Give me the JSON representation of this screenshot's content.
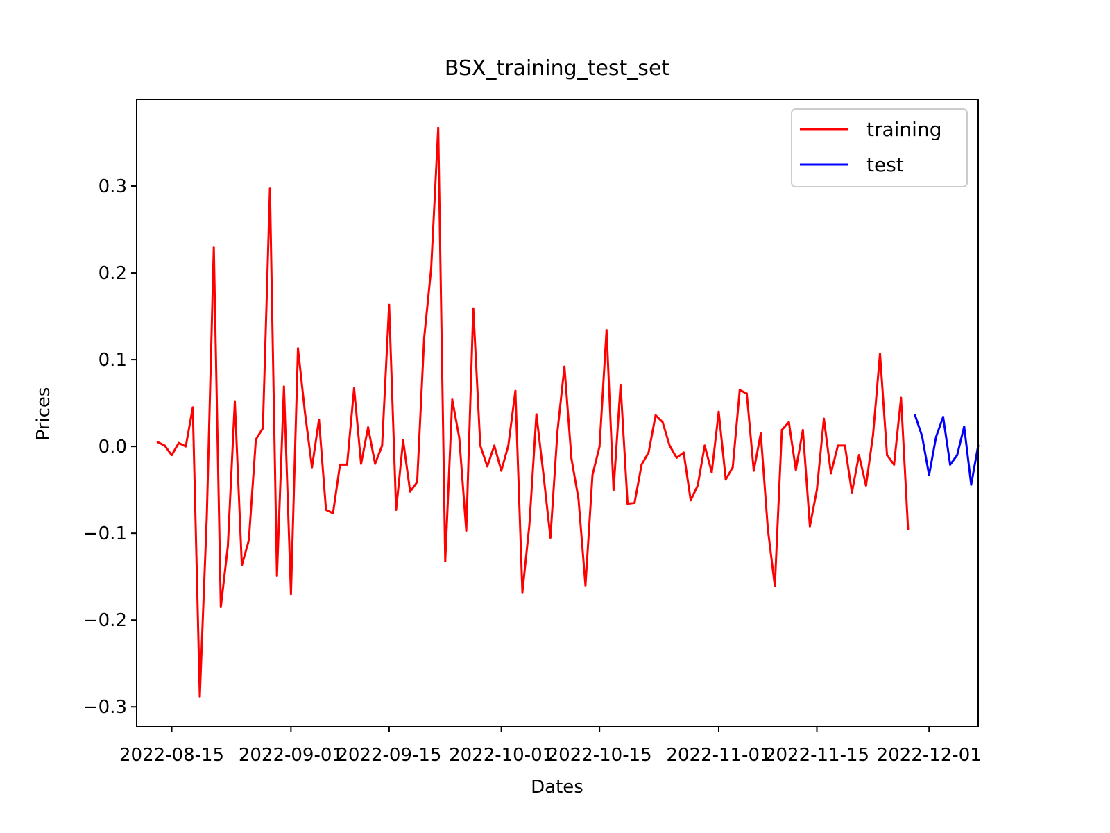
{
  "chart_data": {
    "type": "line",
    "title": "BSX_training_test_set",
    "xlabel": "Dates",
    "ylabel": "Prices",
    "xlim": [
      "2022-08-10",
      "2022-12-08"
    ],
    "ylim": [
      -0.323,
      0.4
    ],
    "x_ticks": [
      {
        "date": "2022-08-15",
        "label": "2022-08-15"
      },
      {
        "date": "2022-09-01",
        "label": "2022-09-01"
      },
      {
        "date": "2022-09-15",
        "label": "2022-09-15"
      },
      {
        "date": "2022-10-01",
        "label": "2022-10-01"
      },
      {
        "date": "2022-10-15",
        "label": "2022-10-15"
      },
      {
        "date": "2022-11-01",
        "label": "2022-11-01"
      },
      {
        "date": "2022-11-15",
        "label": "2022-11-15"
      },
      {
        "date": "2022-12-01",
        "label": "2022-12-01"
      }
    ],
    "y_ticks": [
      {
        "value": -0.3,
        "label": "−0.3"
      },
      {
        "value": -0.2,
        "label": "−0.2"
      },
      {
        "value": -0.1,
        "label": "−0.1"
      },
      {
        "value": 0.0,
        "label": "0.0"
      },
      {
        "value": 0.1,
        "label": "0.1"
      },
      {
        "value": 0.2,
        "label": "0.2"
      },
      {
        "value": 0.3,
        "label": "0.3"
      }
    ],
    "grid": false,
    "legend_position": "top-right",
    "series": [
      {
        "name": "training",
        "color": "#ff0000",
        "x": [
          "2022-08-13",
          "2022-08-14",
          "2022-08-15",
          "2022-08-16",
          "2022-08-17",
          "2022-08-18",
          "2022-08-19",
          "2022-08-20",
          "2022-08-21",
          "2022-08-22",
          "2022-08-23",
          "2022-08-24",
          "2022-08-25",
          "2022-08-26",
          "2022-08-27",
          "2022-08-28",
          "2022-08-29",
          "2022-08-30",
          "2022-08-31",
          "2022-09-01",
          "2022-09-02",
          "2022-09-03",
          "2022-09-04",
          "2022-09-05",
          "2022-09-06",
          "2022-09-07",
          "2022-09-08",
          "2022-09-09",
          "2022-09-10",
          "2022-09-11",
          "2022-09-12",
          "2022-09-13",
          "2022-09-14",
          "2022-09-15",
          "2022-09-16",
          "2022-09-17",
          "2022-09-18",
          "2022-09-19",
          "2022-09-20",
          "2022-09-21",
          "2022-09-22",
          "2022-09-23",
          "2022-09-24",
          "2022-09-25",
          "2022-09-26",
          "2022-09-27",
          "2022-09-28",
          "2022-09-29",
          "2022-09-30",
          "2022-10-01",
          "2022-10-02",
          "2022-10-03",
          "2022-10-04",
          "2022-10-05",
          "2022-10-06",
          "2022-10-07",
          "2022-10-08",
          "2022-10-09",
          "2022-10-10",
          "2022-10-11",
          "2022-10-12",
          "2022-10-13",
          "2022-10-14",
          "2022-10-15",
          "2022-10-16",
          "2022-10-17",
          "2022-10-18",
          "2022-10-19",
          "2022-10-20",
          "2022-10-21",
          "2022-10-22",
          "2022-10-23",
          "2022-10-24",
          "2022-10-25",
          "2022-10-26",
          "2022-10-27",
          "2022-10-28",
          "2022-10-29",
          "2022-10-30",
          "2022-10-31",
          "2022-11-01",
          "2022-11-02",
          "2022-11-03",
          "2022-11-04",
          "2022-11-05",
          "2022-11-06",
          "2022-11-07",
          "2022-11-08",
          "2022-11-09",
          "2022-11-10",
          "2022-11-11",
          "2022-11-12",
          "2022-11-13",
          "2022-11-14",
          "2022-11-15",
          "2022-11-16",
          "2022-11-17",
          "2022-11-18",
          "2022-11-19",
          "2022-11-20",
          "2022-11-21",
          "2022-11-22",
          "2022-11-23",
          "2022-11-24",
          "2022-11-25",
          "2022-11-26",
          "2022-11-27",
          "2022-11-28"
        ],
        "values": [
          0.005,
          0.001,
          -0.01,
          0.004,
          0.0,
          0.045,
          -0.288,
          -0.08,
          0.229,
          -0.185,
          -0.115,
          0.052,
          -0.137,
          -0.108,
          0.008,
          0.021,
          0.297,
          -0.149,
          0.069,
          -0.17,
          0.113,
          0.039,
          -0.024,
          0.031,
          -0.073,
          -0.077,
          -0.021,
          -0.021,
          0.067,
          -0.02,
          0.022,
          -0.02,
          0.001,
          0.163,
          -0.073,
          0.007,
          -0.052,
          -0.041,
          0.125,
          0.205,
          0.367,
          -0.132,
          0.054,
          0.01,
          -0.097,
          0.159,
          0.001,
          -0.023,
          0.001,
          -0.028,
          0.001,
          0.064,
          -0.168,
          -0.09,
          0.037,
          -0.032,
          -0.105,
          0.017,
          0.092,
          -0.014,
          -0.06,
          -0.16,
          -0.033,
          0.0,
          0.134,
          -0.05,
          0.071,
          -0.066,
          -0.065,
          -0.021,
          -0.007,
          0.036,
          0.028,
          0.001,
          -0.013,
          -0.007,
          -0.062,
          -0.045,
          0.001,
          -0.03,
          0.04,
          -0.038,
          -0.024,
          0.065,
          0.061,
          -0.028,
          0.015,
          -0.095,
          -0.161,
          0.019,
          0.028,
          -0.027,
          0.019,
          -0.092,
          -0.05,
          0.032,
          -0.031,
          0.001,
          0.001,
          -0.053,
          -0.01,
          -0.045,
          0.013,
          0.107,
          -0.01,
          -0.021,
          0.056,
          -0.095
        ]
      },
      {
        "name": "test",
        "color": "#0000ff",
        "x": [
          "2022-11-29",
          "2022-11-30",
          "2022-12-01",
          "2022-12-02",
          "2022-12-03",
          "2022-12-04",
          "2022-12-05",
          "2022-12-06",
          "2022-12-07",
          "2022-12-08"
        ],
        "values": [
          0.036,
          0.012,
          -0.033,
          0.011,
          0.034,
          -0.021,
          -0.01,
          0.023,
          -0.044,
          0.001
        ]
      }
    ]
  }
}
